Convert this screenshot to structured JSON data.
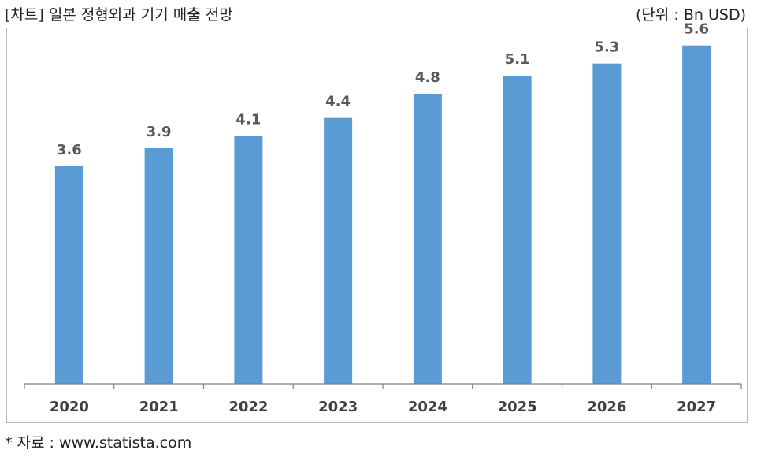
{
  "header": {
    "title": "[차트] 일본 정형외과 기기 매출 전망",
    "unit": "(단위 : Bn USD)"
  },
  "footer": {
    "source": "* 자료 : www.statista.com"
  },
  "colors": {
    "bar": "#5b9bd5",
    "value_label": "#595959",
    "axis": "#7f7f7f",
    "frame": "#b8b8b8"
  },
  "chart_data": {
    "type": "bar",
    "title": "[차트] 일본 정형외과 기기 매출 전망",
    "xlabel": "",
    "ylabel": "",
    "unit": "(단위 : Bn USD)",
    "categories": [
      "2020",
      "2021",
      "2022",
      "2023",
      "2024",
      "2025",
      "2026",
      "2027"
    ],
    "values": [
      3.6,
      3.9,
      4.1,
      4.4,
      4.8,
      5.1,
      5.3,
      5.6
    ],
    "value_labels": [
      "3.6",
      "3.9",
      "4.1",
      "4.4",
      "4.8",
      "5.1",
      "5.3",
      "5.6"
    ],
    "ylim": [
      0,
      6.0
    ],
    "grid": false,
    "legend": "none"
  }
}
